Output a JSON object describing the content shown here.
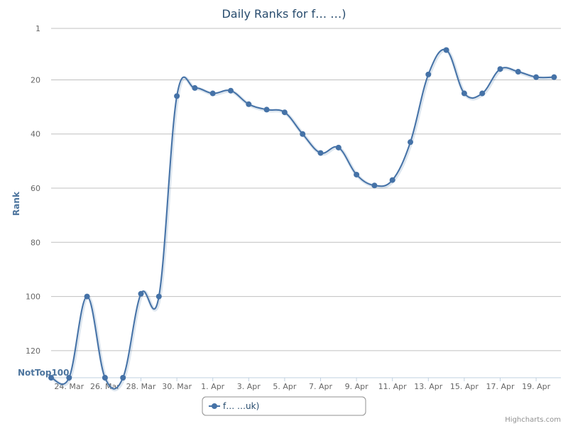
{
  "chart_data": {
    "type": "line",
    "title": "Daily Ranks for f… …)",
    "ylabel": "Rank",
    "reversed_y": true,
    "ylim": [
      1,
      130
    ],
    "yticks": [
      {
        "value": 1,
        "label": "1"
      },
      {
        "value": 20,
        "label": "20"
      },
      {
        "value": 40,
        "label": "40"
      },
      {
        "value": 60,
        "label": "60"
      },
      {
        "value": 80,
        "label": "80"
      },
      {
        "value": 100,
        "label": "100"
      },
      {
        "value": 120,
        "label": "120"
      }
    ],
    "bottom_label": "NotTop100",
    "not_top_value": 130,
    "x_day_index_labels": [
      {
        "day": 1,
        "label": "24. Mar"
      },
      {
        "day": 3,
        "label": "26. Mar"
      },
      {
        "day": 5,
        "label": "28. Mar"
      },
      {
        "day": 7,
        "label": "30. Mar"
      },
      {
        "day": 9,
        "label": "1. Apr"
      },
      {
        "day": 11,
        "label": "3. Apr"
      },
      {
        "day": 13,
        "label": "5. Apr"
      },
      {
        "day": 15,
        "label": "7. Apr"
      },
      {
        "day": 17,
        "label": "9. Apr"
      },
      {
        "day": 19,
        "label": "11. Apr"
      },
      {
        "day": 21,
        "label": "13. Apr"
      },
      {
        "day": 23,
        "label": "15. Apr"
      },
      {
        "day": 25,
        "label": "17. Apr"
      },
      {
        "day": 27,
        "label": "19. Apr"
      }
    ],
    "series": [
      {
        "name": "f… …uk)",
        "color": "#4572a7",
        "points": [
          {
            "day": 0,
            "rank": 130
          },
          {
            "day": 1,
            "rank": 130
          },
          {
            "day": 2,
            "rank": 100
          },
          {
            "day": 3,
            "rank": 130
          },
          {
            "day": 4,
            "rank": 130
          },
          {
            "day": 5,
            "rank": 99
          },
          {
            "day": 6,
            "rank": 100
          },
          {
            "day": 7,
            "rank": 26
          },
          {
            "day": 8,
            "rank": 23
          },
          {
            "day": 9,
            "rank": 25
          },
          {
            "day": 10,
            "rank": 24
          },
          {
            "day": 11,
            "rank": 29
          },
          {
            "day": 12,
            "rank": 31
          },
          {
            "day": 13,
            "rank": 32
          },
          {
            "day": 14,
            "rank": 40
          },
          {
            "day": 15,
            "rank": 47
          },
          {
            "day": 16,
            "rank": 45
          },
          {
            "day": 17,
            "rank": 55
          },
          {
            "day": 18,
            "rank": 59
          },
          {
            "day": 19,
            "rank": 57
          },
          {
            "day": 20,
            "rank": 43
          },
          {
            "day": 21,
            "rank": 18
          },
          {
            "day": 22,
            "rank": 9
          },
          {
            "day": 23,
            "rank": 25
          },
          {
            "day": 24,
            "rank": 25
          },
          {
            "day": 25,
            "rank": 16
          },
          {
            "day": 26,
            "rank": 17
          },
          {
            "day": 27,
            "rank": 19
          },
          {
            "day": 28,
            "rank": 19
          }
        ]
      }
    ],
    "grid": true,
    "legend_position": "bottom-center",
    "credits": "Highcharts.com"
  }
}
